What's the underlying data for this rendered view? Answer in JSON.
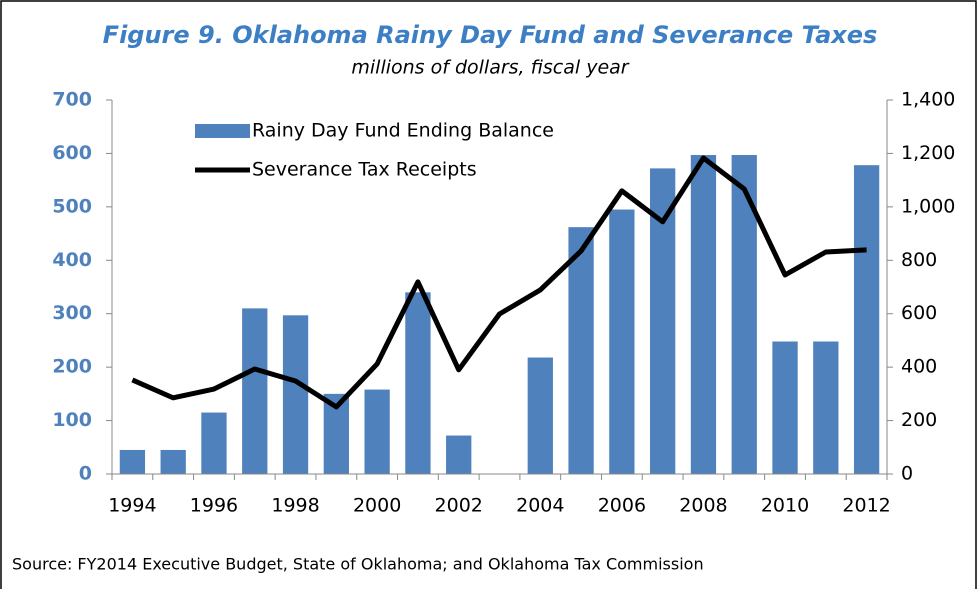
{
  "chart_data": {
    "type": "bar",
    "title": "Figure 9. Oklahoma Rainy Day Fund and Severance Taxes",
    "subtitle": "millions of dollars, fiscal year",
    "source": "Source: FY2014 Executive Budget, State of Oklahoma; and Oklahoma Tax Commission",
    "categories": [
      "1994",
      null,
      "1996",
      null,
      "1998",
      null,
      "2000",
      null,
      "2002",
      null,
      "2004",
      null,
      "2006",
      null,
      "2008",
      null,
      "2010",
      null,
      "2012"
    ],
    "series": [
      {
        "name": "Rainy Day Fund Ending Balance",
        "type": "bar",
        "color": "#4f81bd",
        "values": [
          45,
          45,
          115,
          310,
          297,
          150,
          158,
          340,
          72,
          0,
          218,
          462,
          495,
          572,
          597,
          597,
          248,
          248,
          578
        ]
      },
      {
        "name": "Severance Tax Receipts",
        "type": "line",
        "color": "#000000",
        "axis": "y2",
        "values": [
          352,
          285,
          318,
          393,
          348,
          251,
          412,
          719,
          390,
          599,
          689,
          835,
          1060,
          944,
          1183,
          1067,
          745,
          831,
          839
        ]
      }
    ],
    "ylim": [
      0,
      700
    ],
    "yticks": [
      0,
      100,
      200,
      300,
      400,
      500,
      600,
      700
    ],
    "y2lim": [
      0,
      1400
    ],
    "y2ticks": [
      0,
      200,
      400,
      600,
      800,
      {
        "value": 1000,
        "label": "1,000"
      },
      {
        "value": 1200,
        "label": "1,200"
      },
      {
        "value": 1400,
        "label": "1,400"
      }
    ],
    "legend": "upper left",
    "grid": false
  }
}
